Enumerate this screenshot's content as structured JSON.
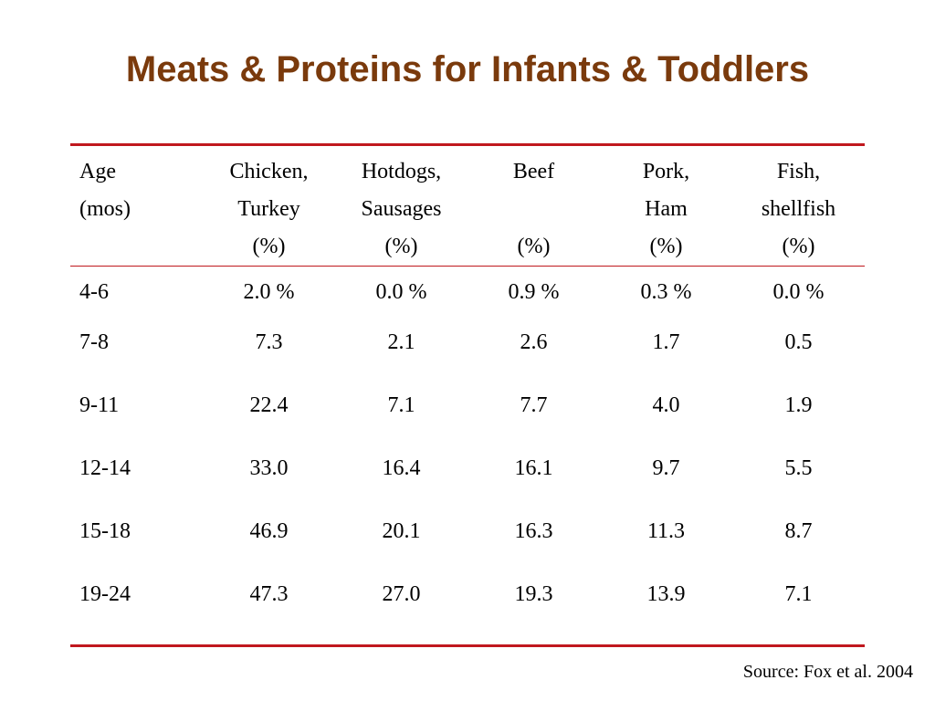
{
  "title": "Meats & Proteins for Infants & Toddlers",
  "colors": {
    "title": "#7a3a0c",
    "rules": "#c0181e",
    "text": "#000000"
  },
  "table": {
    "headers": [
      {
        "line1": "Age",
        "line2": "(mos)",
        "line3": ""
      },
      {
        "line1": "Chicken,",
        "line2": "Turkey",
        "line3": "(%)"
      },
      {
        "line1": "Hotdogs,",
        "line2": "Sausages",
        "line3": "(%)"
      },
      {
        "line1": "Beef",
        "line2": "",
        "line3": "(%)"
      },
      {
        "line1": "Pork,",
        "line2": "Ham",
        "line3": "(%)"
      },
      {
        "line1": "Fish,",
        "line2": "shellfish",
        "line3": "(%)"
      }
    ],
    "rows": [
      [
        "4-6",
        "2.0 %",
        "0.0 %",
        "0.9 %",
        "0.3 %",
        "0.0 %"
      ],
      [
        "7-8",
        "7.3",
        "2.1",
        "2.6",
        "1.7",
        "0.5"
      ],
      [
        "9-11",
        "22.4",
        "7.1",
        "7.7",
        "4.0",
        "1.9"
      ],
      [
        "12-14",
        "33.0",
        "16.4",
        "16.1",
        "9.7",
        "5.5"
      ],
      [
        "15-18",
        "46.9",
        "20.1",
        "16.3",
        "11.3",
        "8.7"
      ],
      [
        "19-24",
        "47.3",
        "27.0",
        "19.3",
        "13.9",
        "7.1"
      ]
    ]
  },
  "source": "Source: Fox et al. 2004"
}
